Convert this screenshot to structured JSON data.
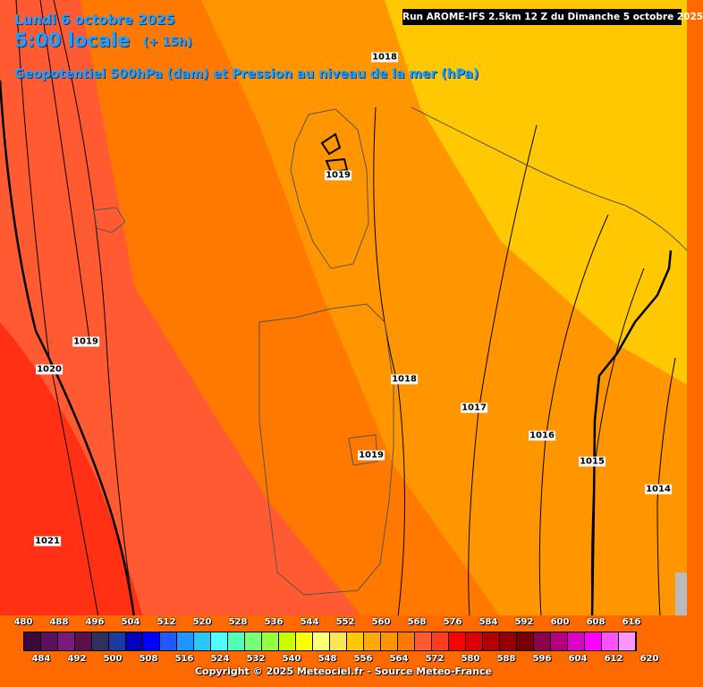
{
  "header": {
    "date": "Lundi 6 octobre 2025",
    "time": "5:00 locale",
    "offset": "(+ 15h)",
    "parameter": "Geopotentiel 500hPa (dam) et Pression au niveau de la mer (hPa)",
    "run": "Run AROME-IFS 2.5km 12 Z du Dimanche 5 octobre 2025"
  },
  "isobar_labels": [
    "1018",
    "1019",
    "1019",
    "1020",
    "1019",
    "1018",
    "1017",
    "1016",
    "1015",
    "1014",
    "1021"
  ],
  "legend": {
    "top_values": [
      "480",
      "488",
      "496",
      "504",
      "512",
      "520",
      "528",
      "536",
      "544",
      "552",
      "560",
      "568",
      "576",
      "584",
      "592",
      "600",
      "608",
      "616"
    ],
    "bottom_values": [
      "484",
      "492",
      "500",
      "508",
      "516",
      "524",
      "532",
      "540",
      "548",
      "556",
      "564",
      "572",
      "580",
      "588",
      "596",
      "604",
      "612",
      "620"
    ],
    "colors": [
      "#3a0a3a",
      "#5c0f5c",
      "#7a1a7a",
      "#5a0f4a",
      "#303060",
      "#1a3aa0",
      "#0000c0",
      "#0000ff",
      "#1e5aff",
      "#1e96ff",
      "#28c8ff",
      "#50ffff",
      "#50ffb4",
      "#78ff78",
      "#96ff3c",
      "#c8ff00",
      "#ffff00",
      "#ffff78",
      "#ffe650",
      "#ffc800",
      "#ffaa00",
      "#ff9600",
      "#ff7800",
      "#ff5a32",
      "#ff3c1e",
      "#ff0000",
      "#dc0000",
      "#b40000",
      "#960000",
      "#780000",
      "#8c0050",
      "#b4007a",
      "#dc00c8",
      "#ff00ff",
      "#ff50ff",
      "#ff96ff"
    ],
    "copyright": "Copyright © 2025 Meteociel.fr - Source Meteo-France"
  }
}
